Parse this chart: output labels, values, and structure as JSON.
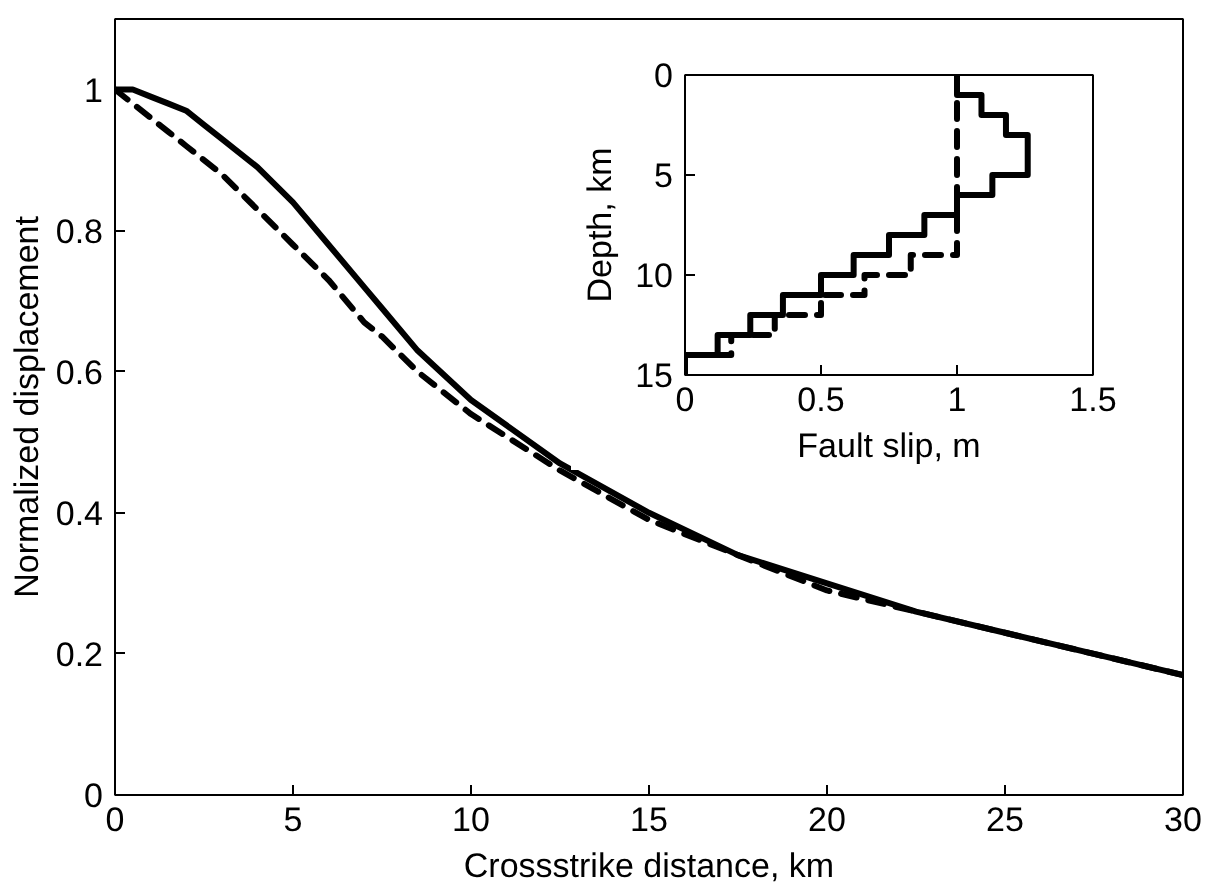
{
  "chart_data": [
    {
      "type": "line",
      "xlabel": "Crossstrike distance, km",
      "ylabel": "Normalized displacement",
      "x": [
        0,
        0.5,
        1,
        1.5,
        2,
        2.5,
        3,
        4,
        5,
        6,
        7,
        7.5,
        8.5,
        10,
        12.5,
        15,
        17.5,
        20,
        22.5,
        25,
        27.5,
        30
      ],
      "series": [
        {
          "color": "#000000",
          "line_style": "solid",
          "values": [
            1.0,
            1.0,
            0.99,
            0.98,
            0.97,
            0.95,
            0.93,
            0.89,
            0.84,
            0.78,
            0.72,
            0.69,
            0.63,
            0.56,
            0.47,
            0.4,
            0.34,
            0.3,
            0.26,
            0.23,
            0.2,
            0.17
          ]
        },
        {
          "color": "#000000",
          "line_style": "dashed",
          "values": [
            1.0,
            0.98,
            0.96,
            0.94,
            0.92,
            0.9,
            0.88,
            0.83,
            0.78,
            0.73,
            0.67,
            0.65,
            0.6,
            0.54,
            0.46,
            0.39,
            0.34,
            0.29,
            0.26,
            0.23,
            0.2,
            0.17
          ]
        }
      ],
      "xlim": [
        0,
        30
      ],
      "ylim": [
        0,
        1.1
      ],
      "xticks": [
        0,
        5,
        10,
        15,
        20,
        25,
        30
      ],
      "yticks": [
        0,
        0.2,
        0.4,
        0.6,
        0.8,
        1
      ]
    },
    {
      "type": "line",
      "xlabel": "Fault slip, m",
      "ylabel": "Depth, km",
      "series": [
        {
          "color": "#000000",
          "line_style": "solid",
          "x": [
            1.0,
            1.0,
            1.09,
            1.09,
            1.18,
            1.18,
            1.26,
            1.26,
            1.13,
            1.13,
            1.0,
            1.0,
            0.88,
            0.88,
            0.75,
            0.75,
            0.62,
            0.62,
            0.5,
            0.5,
            0.36,
            0.36,
            0.24,
            0.24,
            0.12,
            0.12,
            0,
            0
          ],
          "values": [
            0,
            1,
            1,
            2,
            2,
            3,
            3,
            5,
            5,
            6,
            6,
            7,
            7,
            8,
            8,
            9,
            9,
            10,
            10,
            11,
            11,
            12,
            12,
            13,
            13,
            14,
            14,
            15
          ]
        },
        {
          "color": "#000000",
          "line_style": "dashed",
          "x": [
            1.0,
            1.0,
            0.83,
            0.83,
            0.66,
            0.66,
            0.5,
            0.5,
            0.33,
            0.33,
            0.17,
            0.17,
            0,
            0
          ],
          "values": [
            0,
            9,
            9,
            10,
            10,
            11,
            11,
            12,
            12,
            13,
            13,
            14,
            14,
            15
          ]
        }
      ],
      "xlim": [
        0,
        1.5
      ],
      "ylim": [
        15,
        0
      ],
      "xticks": [
        0,
        0.5,
        1,
        1.5
      ],
      "yticks": [
        0,
        5,
        10,
        15
      ]
    }
  ]
}
